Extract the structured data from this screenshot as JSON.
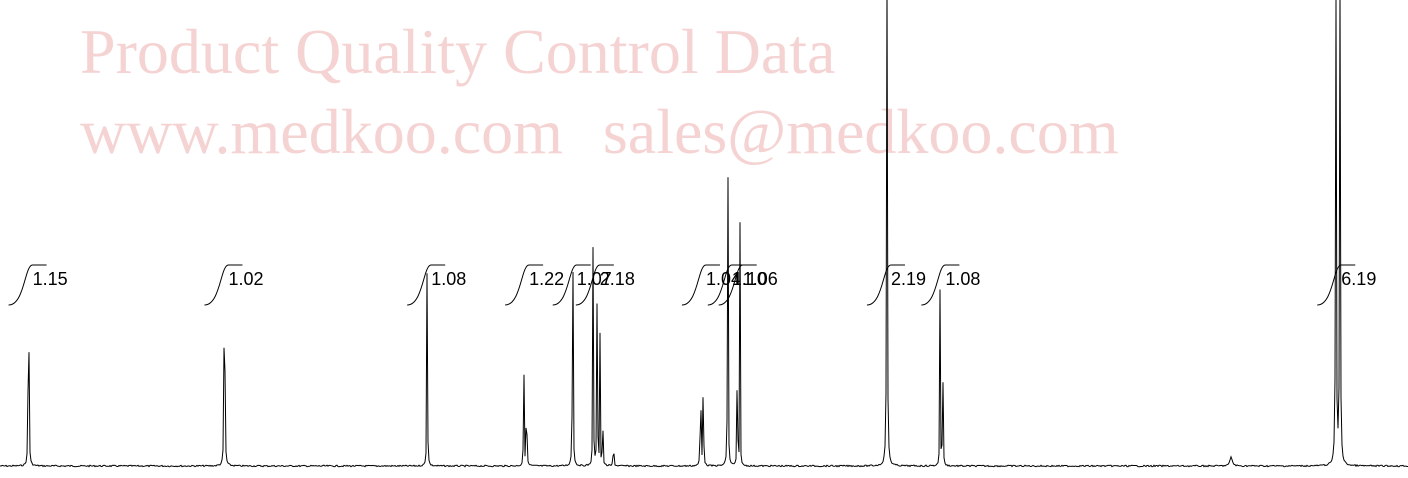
{
  "watermark": {
    "title": "Product Quality Control Data",
    "contact": "www.medkoo.com   sales@medkoo.com"
  },
  "chart_data": {
    "type": "line",
    "title": "",
    "xlabel": "",
    "ylabel": "",
    "grid": false,
    "legend": "none",
    "colors": {
      "trace": "#000000",
      "watermark": "#f5d3d3"
    },
    "peaks": [
      {
        "x": 0.16,
        "height": 0.86,
        "width": 0.002
      },
      {
        "x": 1.6,
        "height": 0.99,
        "width": 0.002
      },
      {
        "x": 3.09,
        "height": 0.56,
        "width": 0.002
      },
      {
        "x": 3.8,
        "height": 0.48,
        "width": 0.0015
      },
      {
        "x": 3.82,
        "height": 0.5,
        "width": 0.0015
      },
      {
        "x": 4.16,
        "height": 0.85,
        "width": 0.002
      },
      {
        "x": 4.31,
        "height": 0.57,
        "width": 0.002
      },
      {
        "x": 4.34,
        "height": 0.55,
        "width": 0.002
      },
      {
        "x": 4.36,
        "height": 0.31,
        "width": 0.0015
      },
      {
        "x": 4.38,
        "height": 0.28,
        "width": 0.0015
      },
      {
        "x": 4.46,
        "height": 0.16,
        "width": 0.0015
      },
      {
        "x": 5.1,
        "height": 0.56,
        "width": 0.0015
      },
      {
        "x": 5.12,
        "height": 0.5,
        "width": 0.0015
      },
      {
        "x": 5.3,
        "height": 0.93,
        "width": 0.002
      },
      {
        "x": 5.37,
        "height": 0.57,
        "width": 0.0015
      },
      {
        "x": 5.39,
        "height": 0.55,
        "width": 0.0015
      },
      {
        "x": 6.47,
        "height": 1.05,
        "width": 0.003
      },
      {
        "x": 6.86,
        "height": 0.38,
        "width": 0.002
      },
      {
        "x": 6.88,
        "height": 0.33,
        "width": 0.002
      },
      {
        "x": 9.0,
        "height": 0.02,
        "width": 0.01
      },
      {
        "x": 9.77,
        "height": 1.05,
        "width": 0.003
      },
      {
        "x": 9.8,
        "height": 1.02,
        "width": 0.003
      }
    ],
    "integrals": [
      {
        "label": "1.15",
        "x": 0.16
      },
      {
        "label": "1.02",
        "x": 1.6
      },
      {
        "label": "1.08",
        "x": 3.09
      },
      {
        "label": "1.22",
        "x": 3.81
      },
      {
        "label": "1.07",
        "x": 4.16
      },
      {
        "label": "2.18",
        "x": 4.33
      },
      {
        "label": "1.04",
        "x": 5.11
      },
      {
        "label": "1.10",
        "x": 5.3
      },
      {
        "label": "1.06",
        "x": 5.38
      },
      {
        "label": "2.19",
        "x": 6.47
      },
      {
        "label": "1.08",
        "x": 6.87
      },
      {
        "label": "6.19",
        "x": 9.78
      }
    ]
  }
}
